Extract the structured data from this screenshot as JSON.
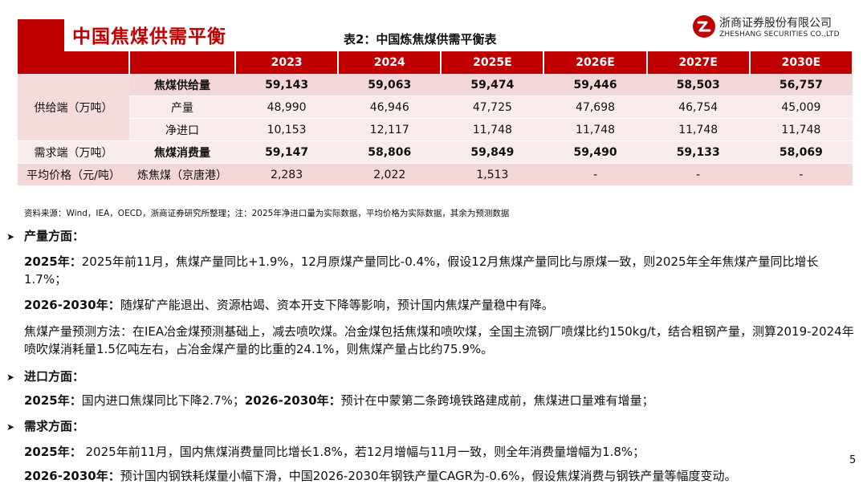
{
  "header": {
    "page_title": "中国焦煤供需平衡",
    "table_title": "表2：中国炼焦煤供需平衡表",
    "logo_cn": "浙商证券股份有限公司",
    "logo_en": "ZHESHANG SECURITIES CO.,LTD",
    "brand_color": "#c00000"
  },
  "table": {
    "columns": [
      "2023",
      "2024",
      "2025E",
      "2026E",
      "2027E",
      "2030E"
    ],
    "group_supply": "供给端（万吨）",
    "group_demand": "需求端（万吨）",
    "group_price": "平均价格（元/吨）",
    "rows": [
      {
        "label": "焦煤供给量",
        "values": [
          "59,143",
          "59,063",
          "59,474",
          "59,446",
          "58,503",
          "56,757"
        ]
      },
      {
        "label": "产量",
        "values": [
          "48,990",
          "46,946",
          "47,725",
          "47,698",
          "46,754",
          "45,009"
        ]
      },
      {
        "label": "净进口",
        "values": [
          "10,153",
          "12,117",
          "11,748",
          "11,748",
          "11,748",
          "11,748"
        ]
      },
      {
        "label": "焦煤消费量",
        "values": [
          "59,147",
          "58,806",
          "59,849",
          "59,490",
          "59,133",
          "58,069"
        ]
      },
      {
        "label": "炼焦煤（京唐港）",
        "values": [
          "2,283",
          "2,022",
          "1,513",
          "-",
          "-",
          "-"
        ]
      }
    ]
  },
  "source": "资料来源：Wind，IEA，OECD，浙商证券研究所整理；注：2025年净进口量为实际数据，平均价格为实际数据，其余为预测数据",
  "sections": {
    "production": {
      "title": "产量方面：",
      "p1_lead": "2025年：",
      "p1_text": "2025年前11月，焦煤产量同比+1.9%，12月原煤产量同比-0.4%，假设12月焦煤产量同比与原煤一致，则2025年全年焦煤产量同比增长1.7%；",
      "p2_lead": "2026-2030年：",
      "p2_text": "随煤矿产能退出、资源枯竭、资本开支下降等影响，预计国内焦煤产量稳中有降。",
      "p3_text": "焦煤产量预测方法：在IEA冶金煤预测基础上，减去喷吹煤。冶金煤包括焦煤和喷吹煤，全国主流钢厂喷煤比约150kg/t，结合粗钢产量，测算2019-2024年喷吹煤消耗量1.5亿吨左右，占冶金煤产量的比重的24.1%，则焦煤产量占比约75.9%。"
    },
    "imports": {
      "title": "进口方面：",
      "lead1": "2025年：",
      "text1": "国内进口焦煤同比下降2.7%；",
      "lead2": "2026-2030年：",
      "text2": "预计在中蒙第二条跨境铁路建成前，焦煤进口量难有增量；"
    },
    "demand": {
      "title": "需求方面：",
      "p1_lead": "2025年：",
      "p1_text": " 2025年前11月，国内焦煤消费量同比增长1.8%，若12月增幅与11月一致，则全年消费量增幅为1.8%；",
      "p2_lead": "2026-2030年：",
      "p2_text": "预计国内钢铁耗煤量小幅下滑，中国2026-2030年钢铁产量CAGR为-0.6%，假设焦煤消费与钢铁产量等幅度变动。"
    }
  },
  "page_number": "5"
}
